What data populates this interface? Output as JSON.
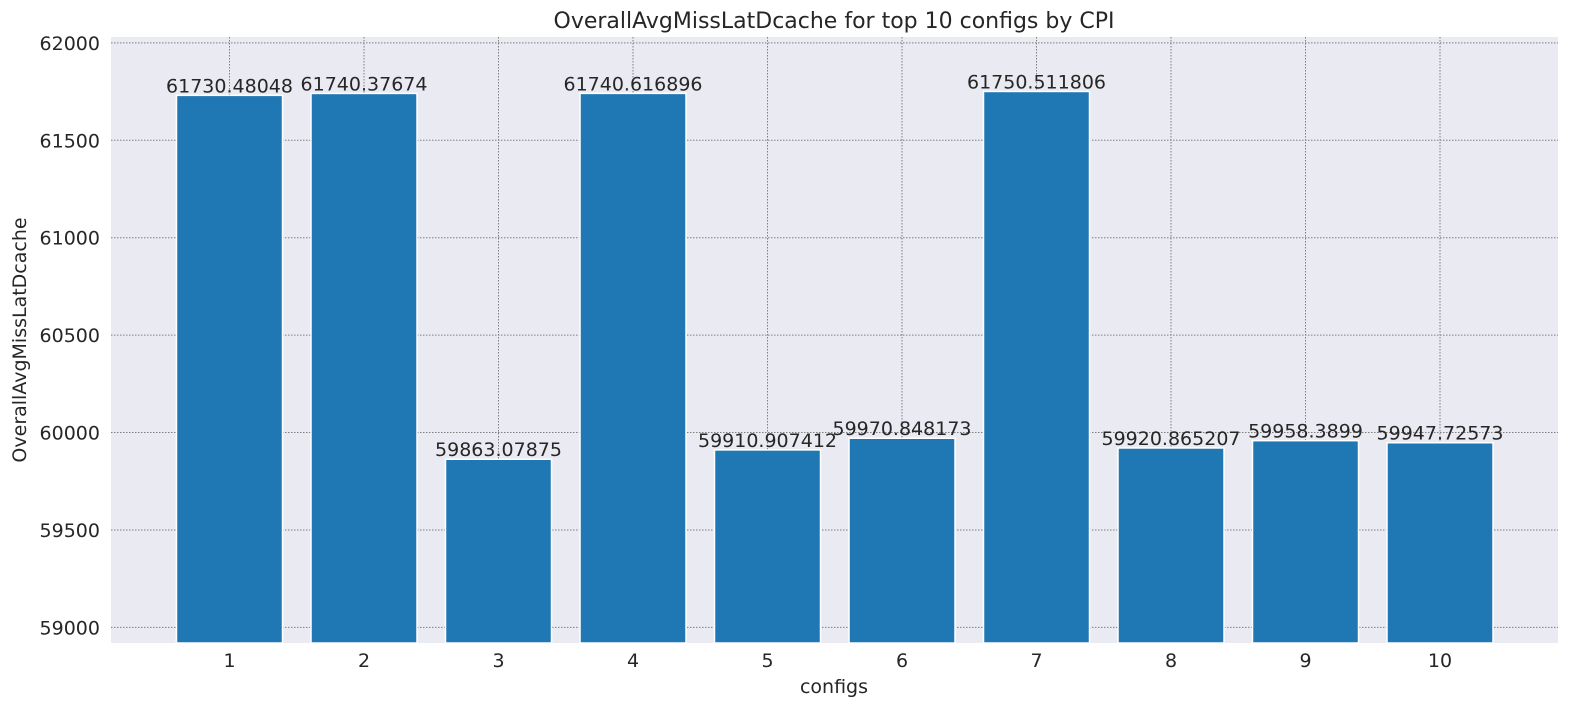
{
  "chart_data": {
    "type": "bar",
    "title": "OverallAvgMissLatDcache for top 10 configs by CPI",
    "xlabel": "configs",
    "ylabel": "OverallAvgMissLatDcache",
    "categories": [
      "1",
      "2",
      "3",
      "4",
      "5",
      "6",
      "7",
      "8",
      "9",
      "10"
    ],
    "values": [
      61730.48048,
      61740.37674,
      59863.07875,
      61740.616896,
      59910.907412,
      59970.848173,
      61750.511806,
      59920.865207,
      59958.3899,
      59947.72573
    ],
    "data_labels": [
      "61730.48048",
      "61740.37674",
      "59863.07875",
      "61740.616896",
      "59910.907412",
      "59970.848173",
      "61750.511806",
      "59920.865207",
      "59958.3899",
      "59947.72573"
    ],
    "ylim": [
      58920,
      62030
    ],
    "yticks": [
      59000,
      59500,
      60000,
      60500,
      61000,
      61500,
      62000
    ],
    "grid": true,
    "bar_color": "#1f77b4",
    "background_color": "#eaeaf2",
    "grid_color": "#7f7f7f"
  }
}
